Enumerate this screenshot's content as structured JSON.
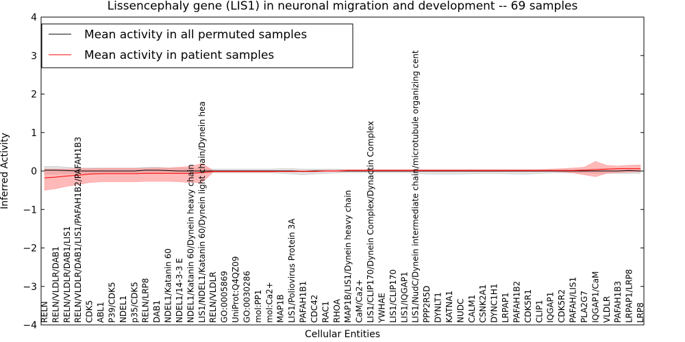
{
  "chart_data": {
    "type": "line",
    "title": "Lissencephaly gene (LIS1) in neuronal migration and development -- 69 samples",
    "xlabel": "Cellular Entities",
    "ylabel": "Inferred Activity",
    "ylim": [
      -4,
      4
    ],
    "yticks": [
      -4,
      -3,
      -2,
      -1,
      0,
      1,
      2,
      3,
      4
    ],
    "ytick_labels": [
      "−4",
      "−3",
      "−2",
      "−1",
      "0",
      "1",
      "2",
      "3",
      "4"
    ],
    "legend_position": "top-left",
    "categories": [
      "RELN",
      "RELN/VLDLR/DAB1",
      "RELN/VLDLR/DAB1/LIS1",
      "RELN/VLDLR/DAB1/LIS1/PAFAH1B2/PAFAH1B3",
      "CDK5",
      "ABL1",
      "P39/CDK5",
      "NDEL1",
      "p35/CDK5",
      "RELN/LRP8",
      "DAB1",
      "NDEL1/Katanin 60",
      "NDEL1/14-3-3 E",
      "NDEL1/Katanin 60/Dynein heavy chain",
      "LIS1/NDEL1/Katanin 60/Dynein light chain/Dynein hea",
      "RELN/VLDLR",
      "GO:0005869",
      "UniProt:Q4QZ09",
      "GO:0030286",
      "mol:PP1",
      "mol:Ca2+",
      "MAP1B",
      "LIS1/Poliovirus Protein 3A",
      "PAFAH1B1",
      "CDC42",
      "RAC1",
      "RHOA",
      "MAP1B/LIS1/Dynein heavy chain",
      "CaM/Ca2+",
      "LIS1/CLIP170/Dynein Complex/Dynactin Complex",
      "YWHAE",
      "LIS1/CLIP170",
      "LIS1/IQGAP1",
      "LIS1/NudC/Dynein intermediate chain/microtubule organizing cent",
      "PPP2R5D",
      "DYNLT1",
      "KATNA1",
      "NUDC",
      "CALM1",
      "CSNK2A1",
      "DYNC1H1",
      "LRPAP1",
      "PAFAH1B2",
      "CDK5R1",
      "CLIP1",
      "IQGAP1",
      "CDK5R2",
      "PAFAH/LIS1",
      "PLA2G7",
      "IQGAP1/CaM",
      "VLDLR",
      "PAFAH1B3",
      "LRPAP1/LRP8",
      "LRP8"
    ],
    "series": [
      {
        "name": "Mean activity in all permuted samples",
        "color": "#000000",
        "band_color": "#aaaaaa",
        "values": [
          0.02,
          0.02,
          0.01,
          0.0,
          0.0,
          0.0,
          0.0,
          0.0,
          0.0,
          0.02,
          0.02,
          0.01,
          0.0,
          0.0,
          0.0,
          0.0,
          0.0,
          0.0,
          0.0,
          0.0,
          0.0,
          0.0,
          0.0,
          -0.01,
          0.0,
          0.0,
          0.0,
          0.0,
          0.0,
          0.0,
          0.0,
          0.0,
          0.0,
          0.0,
          0.0,
          0.0,
          0.0,
          0.0,
          0.0,
          0.0,
          0.0,
          0.0,
          0.0,
          0.0,
          0.0,
          0.0,
          0.0,
          0.0,
          0.0,
          0.0,
          0.0,
          0.0,
          0.01,
          0.0
        ],
        "lower": [
          -0.08,
          -0.08,
          -0.07,
          -0.07,
          -0.07,
          -0.07,
          -0.07,
          -0.07,
          -0.07,
          -0.05,
          -0.05,
          -0.06,
          -0.07,
          -0.07,
          -0.06,
          -0.05,
          -0.05,
          -0.05,
          -0.05,
          -0.05,
          -0.05,
          -0.06,
          -0.08,
          -0.1,
          -0.08,
          -0.06,
          -0.05,
          -0.04,
          -0.04,
          -0.04,
          -0.04,
          -0.04,
          -0.04,
          -0.06,
          -0.08,
          -0.08,
          -0.08,
          -0.08,
          -0.07,
          -0.06,
          -0.06,
          -0.07,
          -0.08,
          -0.08,
          -0.06,
          -0.05,
          -0.05,
          -0.05,
          -0.05,
          -0.06,
          -0.06,
          -0.06,
          -0.06,
          -0.06
        ],
        "upper": [
          0.12,
          0.12,
          0.1,
          0.08,
          0.08,
          0.08,
          0.08,
          0.08,
          0.08,
          0.1,
          0.1,
          0.08,
          0.07,
          0.07,
          0.06,
          0.05,
          0.05,
          0.05,
          0.05,
          0.05,
          0.05,
          0.06,
          0.06,
          0.05,
          0.05,
          0.05,
          0.05,
          0.04,
          0.04,
          0.04,
          0.04,
          0.04,
          0.04,
          0.04,
          0.04,
          0.04,
          0.04,
          0.04,
          0.04,
          0.04,
          0.04,
          0.04,
          0.04,
          0.04,
          0.04,
          0.04,
          0.04,
          0.04,
          0.05,
          0.06,
          0.06,
          0.06,
          0.06,
          0.06
        ]
      },
      {
        "name": "Mean activity in patient samples",
        "color": "#ff0000",
        "band_color": "#ff7f7f",
        "values": [
          -0.18,
          -0.16,
          -0.13,
          -0.11,
          -0.08,
          -0.07,
          -0.07,
          -0.07,
          -0.07,
          -0.06,
          -0.06,
          -0.06,
          -0.06,
          -0.06,
          -0.04,
          -0.01,
          -0.01,
          -0.01,
          -0.01,
          -0.01,
          -0.01,
          -0.01,
          -0.01,
          -0.01,
          -0.01,
          0.0,
          0.0,
          0.01,
          0.01,
          0.01,
          0.01,
          0.01,
          0.01,
          0.01,
          0.01,
          0.01,
          0.01,
          0.01,
          0.01,
          0.01,
          0.01,
          0.01,
          0.01,
          0.01,
          0.01,
          0.01,
          0.01,
          0.01,
          0.02,
          0.03,
          0.05,
          0.06,
          0.06,
          0.06
        ],
        "lower": [
          -0.5,
          -0.46,
          -0.4,
          -0.35,
          -0.3,
          -0.28,
          -0.28,
          -0.28,
          -0.28,
          -0.27,
          -0.27,
          -0.27,
          -0.28,
          -0.3,
          -0.3,
          -0.03,
          -0.03,
          -0.03,
          -0.03,
          -0.03,
          -0.03,
          -0.02,
          -0.02,
          -0.02,
          -0.02,
          -0.01,
          -0.01,
          -0.01,
          -0.01,
          -0.01,
          -0.01,
          -0.01,
          -0.01,
          -0.01,
          -0.01,
          -0.01,
          -0.01,
          -0.01,
          -0.01,
          -0.01,
          -0.01,
          -0.01,
          -0.01,
          -0.01,
          -0.01,
          -0.01,
          -0.02,
          -0.05,
          -0.1,
          -0.15,
          -0.06,
          -0.04,
          -0.03,
          -0.02
        ],
        "upper": [
          0.05,
          0.05,
          0.05,
          0.06,
          0.06,
          0.07,
          0.07,
          0.07,
          0.07,
          0.07,
          0.08,
          0.08,
          0.1,
          0.12,
          0.2,
          0.01,
          0.01,
          0.01,
          0.01,
          0.01,
          0.01,
          0.01,
          0.01,
          0.01,
          0.01,
          0.02,
          0.02,
          0.04,
          0.04,
          0.04,
          0.04,
          0.04,
          0.04,
          0.04,
          0.04,
          0.04,
          0.04,
          0.04,
          0.04,
          0.04,
          0.04,
          0.04,
          0.04,
          0.04,
          0.04,
          0.05,
          0.06,
          0.08,
          0.1,
          0.25,
          0.15,
          0.13,
          0.15,
          0.16
        ]
      }
    ]
  }
}
